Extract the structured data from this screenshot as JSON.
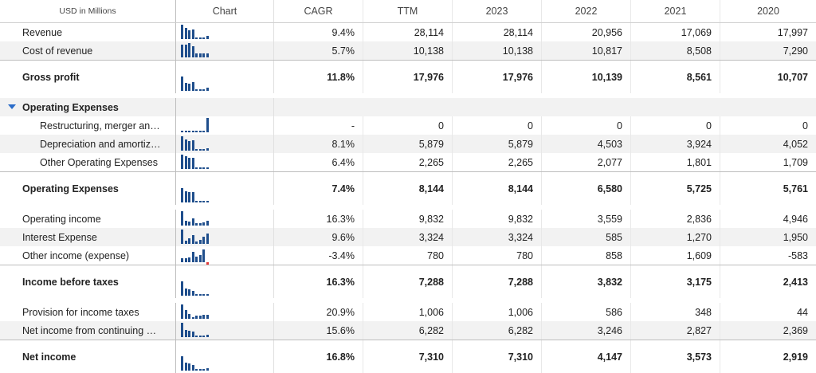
{
  "header": {
    "units": "USD in Millions",
    "chart": "Chart",
    "cagr": "CAGR",
    "cols": [
      "TTM",
      "2023",
      "2022",
      "2021",
      "2020"
    ]
  },
  "rows": [
    {
      "label": "Revenue",
      "cagr": "9.4%",
      "vals": [
        "28,114",
        "28,114",
        "20,956",
        "17,069",
        "17,997"
      ],
      "spark": [
        1,
        0.75,
        0.6,
        0.64,
        0.07,
        0.07,
        0.07,
        0.2
      ]
    },
    {
      "label": "Cost of revenue",
      "cagr": "5.7%",
      "vals": [
        "10,138",
        "10,138",
        "10,817",
        "8,508",
        "7,290"
      ],
      "spark": [
        0.9,
        0.9,
        1,
        0.8,
        0.3,
        0.3,
        0.3,
        0.3
      ]
    },
    {
      "label": "Gross profit",
      "cagr": "11.8%",
      "vals": [
        "17,976",
        "17,976",
        "10,139",
        "8,561",
        "10,707"
      ],
      "spark": [
        1,
        0.55,
        0.48,
        0.6,
        0.1,
        0.1,
        0.1,
        0.2
      ]
    },
    {
      "label": "Operating Expenses",
      "section": true
    },
    {
      "label": "Restructuring, merger an…",
      "cagr": "-",
      "vals": [
        "0",
        "0",
        "0",
        "0",
        "0"
      ],
      "spark": [
        0.03,
        0.03,
        0.03,
        0.03,
        0.03,
        0.03,
        0.03,
        1
      ]
    },
    {
      "label": "Depreciation and amortiz…",
      "cagr": "8.1%",
      "vals": [
        "5,879",
        "5,879",
        "4,503",
        "3,924",
        "4,052"
      ],
      "spark": [
        1,
        0.77,
        0.67,
        0.7,
        0.1,
        0.1,
        0.1,
        0.15
      ]
    },
    {
      "label": "Other Operating Expenses",
      "cagr": "6.4%",
      "vals": [
        "2,265",
        "2,265",
        "2,077",
        "1,801",
        "1,709"
      ],
      "spark": [
        1,
        0.9,
        0.8,
        0.75,
        0.1,
        0.1,
        0.1,
        0.1
      ]
    },
    {
      "label": "Operating Expenses",
      "cagr": "7.4%",
      "vals": [
        "8,144",
        "8,144",
        "6,580",
        "5,725",
        "5,761"
      ],
      "spark": [
        1,
        0.8,
        0.7,
        0.7,
        0.08,
        0.08,
        0.08,
        0.08
      ]
    },
    {
      "label": "Operating income",
      "cagr": "16.3%",
      "vals": [
        "9,832",
        "9,832",
        "3,559",
        "2,836",
        "4,946"
      ],
      "spark": [
        1,
        0.36,
        0.29,
        0.5,
        0.15,
        0.15,
        0.2,
        0.35
      ]
    },
    {
      "label": "Interest Expense",
      "cagr": "9.6%",
      "vals": [
        "3,324",
        "3,324",
        "585",
        "1,270",
        "1,950"
      ],
      "spark": [
        1,
        0.2,
        0.4,
        0.6,
        0.15,
        0.3,
        0.5,
        0.7
      ]
    },
    {
      "label": "Other income (expense)",
      "cagr": "-3.4%",
      "vals": [
        "780",
        "780",
        "858",
        "1,609",
        "-583"
      ],
      "spark": [
        0.3,
        0.3,
        0.35,
        0.7,
        0.4,
        0.5,
        0.9,
        -0.3
      ]
    },
    {
      "label": "Income before taxes",
      "cagr": "16.3%",
      "vals": [
        "7,288",
        "7,288",
        "3,832",
        "3,175",
        "2,413"
      ],
      "spark": [
        1,
        0.5,
        0.44,
        0.35,
        0.08,
        0.08,
        0.08,
        0.1
      ]
    },
    {
      "label": "Provision for income taxes",
      "cagr": "20.9%",
      "vals": [
        "1,006",
        "1,006",
        "586",
        "348",
        "44"
      ],
      "spark": [
        1,
        0.6,
        0.35,
        0.05,
        0.2,
        0.2,
        0.3,
        0.3
      ]
    },
    {
      "label": "Net income from continuing …",
      "cagr": "15.6%",
      "vals": [
        "6,282",
        "6,282",
        "3,246",
        "2,827",
        "2,369"
      ],
      "spark": [
        1,
        0.5,
        0.45,
        0.38,
        0.1,
        0.1,
        0.1,
        0.15
      ]
    },
    {
      "label": "Net income",
      "cagr": "16.8%",
      "vals": [
        "7,310",
        "7,310",
        "4,147",
        "3,573",
        "2,919"
      ],
      "spark": [
        1,
        0.57,
        0.49,
        0.4,
        0.1,
        0.1,
        0.1,
        0.15
      ]
    }
  ]
}
